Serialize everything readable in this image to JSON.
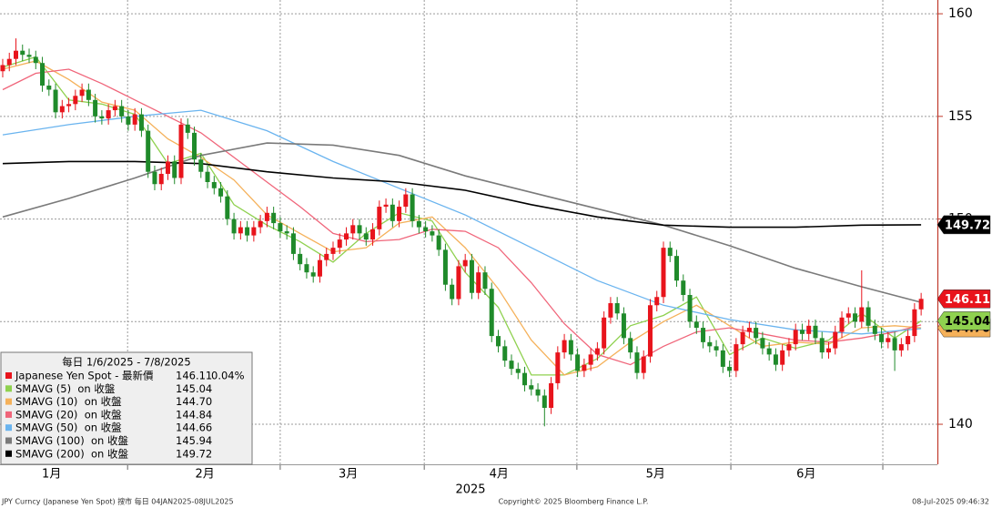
{
  "chart_data": {
    "type": "candlestick",
    "xlim": [
      -0.41,
      141.46
    ],
    "ylim": [
      138.05,
      160.67
    ],
    "yticks": [
      140,
      145,
      150,
      155,
      160
    ],
    "xticks": [
      {
        "value": 7.4,
        "label": "1月"
      },
      {
        "value": 30.6,
        "label": "2月"
      },
      {
        "value": 52.3,
        "label": "3月"
      },
      {
        "value": 75.1,
        "label": "4月"
      },
      {
        "value": 98.8,
        "label": "5月"
      },
      {
        "value": 121.6,
        "label": "6月"
      }
    ],
    "xgrid": [
      18.9,
      42.0,
      63.8,
      86.9,
      110.2,
      133.2
    ],
    "xlabel": "2025",
    "grid": true,
    "up_color": "#e8141c",
    "down_color": "#1f8a2a",
    "price": {
      "name": "Japanese Yen Spot - 最新價",
      "color": "#e8141c",
      "change": "0.04%",
      "tag_text_color": "#ffffff"
    },
    "ohlc": [
      [
        157.2,
        157.8,
        156.9,
        157.5
      ],
      [
        157.5,
        158.1,
        157.2,
        157.8
      ],
      [
        157.8,
        158.8,
        157.5,
        158.2
      ],
      [
        158.2,
        158.5,
        157.7,
        158.0
      ],
      [
        158.0,
        158.3,
        157.6,
        157.9
      ],
      [
        157.9,
        158.2,
        157.3,
        157.6
      ],
      [
        157.6,
        157.9,
        156.2,
        156.5
      ],
      [
        156.5,
        156.8,
        156.0,
        156.3
      ],
      [
        156.3,
        156.6,
        154.9,
        155.2
      ],
      [
        155.2,
        155.8,
        154.9,
        155.5
      ],
      [
        155.5,
        155.9,
        155.2,
        155.6
      ],
      [
        155.6,
        156.3,
        155.3,
        156.0
      ],
      [
        156.0,
        156.6,
        155.7,
        156.3
      ],
      [
        156.3,
        156.6,
        155.5,
        155.8
      ],
      [
        155.8,
        156.1,
        154.7,
        155.0
      ],
      [
        155.0,
        155.3,
        154.6,
        154.9
      ],
      [
        154.9,
        155.6,
        154.6,
        155.3
      ],
      [
        155.3,
        155.8,
        155.0,
        155.5
      ],
      [
        155.5,
        155.8,
        154.7,
        155.0
      ],
      [
        155.0,
        155.3,
        154.3,
        154.6
      ],
      [
        154.6,
        155.4,
        154.3,
        155.1
      ],
      [
        155.1,
        155.4,
        154.0,
        154.3
      ],
      [
        154.3,
        154.6,
        152.0,
        152.3
      ],
      [
        152.3,
        152.6,
        151.4,
        151.7
      ],
      [
        151.7,
        152.5,
        151.4,
        152.2
      ],
      [
        152.2,
        153.1,
        151.9,
        152.8
      ],
      [
        152.8,
        153.1,
        151.7,
        152.0
      ],
      [
        152.0,
        154.9,
        151.7,
        154.6
      ],
      [
        154.6,
        154.9,
        153.9,
        154.2
      ],
      [
        154.2,
        154.5,
        152.6,
        152.9
      ],
      [
        152.9,
        153.2,
        152.0,
        152.3
      ],
      [
        152.3,
        152.6,
        151.5,
        151.8
      ],
      [
        151.8,
        152.1,
        151.2,
        151.5
      ],
      [
        151.5,
        151.8,
        150.8,
        151.1
      ],
      [
        151.1,
        151.4,
        149.7,
        150.0
      ],
      [
        150.0,
        150.3,
        149.0,
        149.3
      ],
      [
        149.3,
        149.9,
        149.0,
        149.6
      ],
      [
        149.6,
        149.9,
        148.9,
        149.2
      ],
      [
        149.2,
        149.9,
        148.9,
        149.6
      ],
      [
        149.6,
        150.2,
        149.3,
        149.9
      ],
      [
        149.9,
        150.6,
        149.6,
        150.3
      ],
      [
        150.3,
        150.6,
        149.5,
        149.8
      ],
      [
        149.8,
        150.1,
        149.1,
        149.4
      ],
      [
        149.4,
        149.7,
        149.0,
        149.3
      ],
      [
        149.3,
        149.6,
        148.0,
        148.3
      ],
      [
        148.3,
        148.6,
        147.5,
        147.8
      ],
      [
        147.8,
        148.1,
        147.1,
        147.4
      ],
      [
        147.4,
        147.7,
        146.9,
        147.2
      ],
      [
        147.2,
        148.3,
        146.9,
        148.0
      ],
      [
        148.0,
        148.6,
        147.7,
        148.3
      ],
      [
        148.3,
        148.9,
        148.0,
        148.6
      ],
      [
        148.6,
        149.3,
        148.3,
        149.0
      ],
      [
        149.0,
        149.6,
        148.7,
        149.3
      ],
      [
        149.3,
        150.0,
        149.0,
        149.7
      ],
      [
        149.7,
        150.0,
        149.0,
        149.3
      ],
      [
        149.3,
        149.6,
        148.7,
        149.0
      ],
      [
        149.0,
        149.8,
        148.7,
        149.5
      ],
      [
        149.5,
        150.9,
        149.2,
        150.6
      ],
      [
        150.6,
        151.0,
        150.3,
        150.7
      ],
      [
        150.7,
        151.0,
        149.6,
        149.9
      ],
      [
        149.9,
        150.9,
        149.6,
        150.6
      ],
      [
        150.6,
        151.5,
        150.3,
        151.2
      ],
      [
        151.2,
        151.5,
        149.6,
        149.9
      ],
      [
        149.9,
        150.2,
        149.3,
        149.6
      ],
      [
        149.6,
        149.9,
        149.1,
        149.4
      ],
      [
        149.4,
        149.7,
        148.9,
        149.2
      ],
      [
        149.2,
        149.5,
        148.2,
        148.5
      ],
      [
        148.5,
        148.8,
        146.5,
        146.8
      ],
      [
        146.8,
        147.1,
        145.8,
        146.1
      ],
      [
        146.1,
        148.0,
        145.8,
        147.7
      ],
      [
        147.7,
        148.3,
        147.4,
        148.0
      ],
      [
        148.0,
        148.3,
        146.1,
        146.4
      ],
      [
        146.4,
        147.7,
        146.1,
        147.4
      ],
      [
        147.4,
        147.7,
        146.3,
        146.6
      ],
      [
        146.6,
        146.9,
        144.0,
        144.3
      ],
      [
        144.3,
        144.6,
        143.5,
        143.8
      ],
      [
        143.8,
        144.1,
        142.8,
        143.1
      ],
      [
        143.1,
        143.4,
        142.4,
        142.7
      ],
      [
        142.7,
        143.0,
        142.2,
        142.5
      ],
      [
        142.5,
        142.8,
        141.6,
        141.9
      ],
      [
        141.9,
        142.2,
        141.4,
        141.7
      ],
      [
        141.7,
        142.0,
        141.1,
        141.4
      ],
      [
        141.4,
        141.7,
        139.9,
        140.8
      ],
      [
        140.8,
        142.3,
        140.5,
        142.0
      ],
      [
        142.0,
        143.8,
        141.7,
        143.5
      ],
      [
        143.5,
        144.4,
        143.2,
        144.1
      ],
      [
        144.1,
        144.4,
        143.1,
        143.4
      ],
      [
        143.4,
        143.7,
        142.3,
        142.6
      ],
      [
        142.6,
        143.2,
        142.3,
        142.9
      ],
      [
        142.9,
        143.7,
        142.6,
        143.4
      ],
      [
        143.4,
        144.0,
        143.1,
        143.7
      ],
      [
        143.7,
        145.5,
        143.4,
        145.2
      ],
      [
        145.2,
        146.2,
        144.9,
        145.9
      ],
      [
        145.9,
        146.2,
        145.1,
        145.4
      ],
      [
        145.4,
        145.7,
        143.9,
        144.2
      ],
      [
        144.2,
        144.5,
        143.2,
        143.5
      ],
      [
        143.5,
        143.8,
        142.2,
        142.5
      ],
      [
        142.5,
        143.6,
        142.2,
        143.3
      ],
      [
        143.3,
        146.1,
        143.0,
        145.8
      ],
      [
        145.8,
        146.5,
        145.5,
        146.2
      ],
      [
        146.2,
        148.9,
        145.9,
        148.6
      ],
      [
        148.6,
        148.9,
        147.9,
        148.2
      ],
      [
        148.2,
        148.5,
        146.7,
        147.0
      ],
      [
        147.0,
        147.3,
        146.0,
        146.3
      ],
      [
        146.3,
        146.6,
        144.7,
        145.0
      ],
      [
        145.0,
        145.3,
        144.4,
        144.7
      ],
      [
        144.7,
        145.0,
        143.7,
        144.0
      ],
      [
        144.0,
        144.3,
        143.5,
        143.8
      ],
      [
        143.8,
        144.1,
        143.3,
        143.6
      ],
      [
        143.6,
        143.9,
        142.5,
        142.8
      ],
      [
        142.8,
        143.1,
        142.3,
        142.6
      ],
      [
        142.6,
        144.2,
        142.3,
        143.9
      ],
      [
        143.9,
        144.8,
        143.6,
        144.5
      ],
      [
        144.5,
        145.0,
        144.2,
        144.7
      ],
      [
        144.7,
        145.0,
        143.9,
        144.2
      ],
      [
        144.2,
        144.5,
        143.4,
        143.7
      ],
      [
        143.7,
        144.0,
        143.1,
        143.4
      ],
      [
        143.4,
        143.7,
        142.6,
        142.9
      ],
      [
        142.9,
        143.9,
        142.6,
        143.6
      ],
      [
        143.6,
        144.2,
        143.3,
        143.9
      ],
      [
        143.9,
        144.9,
        143.6,
        144.6
      ],
      [
        144.6,
        144.9,
        144.1,
        144.4
      ],
      [
        144.4,
        145.1,
        144.1,
        144.8
      ],
      [
        144.8,
        145.1,
        143.9,
        144.2
      ],
      [
        144.2,
        144.5,
        143.2,
        143.5
      ],
      [
        143.5,
        144.0,
        143.2,
        143.7
      ],
      [
        143.7,
        144.8,
        143.4,
        144.5
      ],
      [
        144.5,
        145.5,
        144.2,
        145.2
      ],
      [
        145.2,
        145.7,
        144.9,
        145.4
      ],
      [
        145.4,
        145.7,
        144.7,
        145.0
      ],
      [
        145.0,
        147.5,
        144.7,
        145.7
      ],
      [
        145.7,
        146.0,
        144.5,
        144.8
      ],
      [
        144.8,
        145.1,
        144.1,
        144.4
      ],
      [
        144.4,
        144.7,
        143.7,
        144.0
      ],
      [
        144.0,
        144.5,
        143.7,
        144.2
      ],
      [
        144.2,
        144.5,
        142.6,
        143.6
      ],
      [
        143.6,
        144.2,
        143.3,
        143.9
      ],
      [
        143.9,
        144.6,
        143.6,
        144.3
      ],
      [
        144.3,
        145.9,
        144.0,
        145.6
      ],
      [
        145.6,
        146.4,
        145.3,
        146.11
      ]
    ],
    "series": [
      {
        "name": "SMAVG (5)  on 收盤",
        "color": "#8fd14f",
        "last_label": "145.04",
        "x": [
          0,
          5,
          10,
          15,
          20,
          25,
          30,
          35,
          40,
          45,
          50,
          55,
          60,
          65,
          70,
          75,
          80,
          85,
          90,
          95,
          100,
          105,
          110,
          115,
          120,
          125,
          130,
          135,
          139
        ],
        "values": [
          157.4,
          157.9,
          155.8,
          155.6,
          155.1,
          152.7,
          153.2,
          150.7,
          149.7,
          148.9,
          147.9,
          149.3,
          150.3,
          149.9,
          147.4,
          145.7,
          142.4,
          142.4,
          143.2,
          144.8,
          145.3,
          146.2,
          143.4,
          144.2,
          143.7,
          144.1,
          145.4,
          144.2,
          145.04
        ]
      },
      {
        "name": "SMAVG (10)  on 收盤",
        "color": "#f5b15a",
        "last_label": "144.70",
        "x": [
          0,
          5,
          10,
          15,
          20,
          25,
          30,
          35,
          40,
          45,
          50,
          55,
          60,
          65,
          70,
          75,
          80,
          85,
          90,
          95,
          100,
          105,
          110,
          115,
          120,
          125,
          130,
          135,
          139
        ],
        "values": [
          157.3,
          157.7,
          156.8,
          155.7,
          155.3,
          153.9,
          153.0,
          151.9,
          150.2,
          149.3,
          148.4,
          148.6,
          149.8,
          150.1,
          148.6,
          146.6,
          144.1,
          142.4,
          142.8,
          144.0,
          145.0,
          145.8,
          144.8,
          143.8,
          144.0,
          143.9,
          144.7,
          144.8,
          144.7
        ]
      },
      {
        "name": "SMAVG (20)  on 收盤",
        "color": "#f0657a",
        "last_label": "144.84",
        "x": [
          0,
          5,
          10,
          15,
          20,
          25,
          30,
          35,
          40,
          45,
          50,
          55,
          60,
          65,
          70,
          75,
          80,
          85,
          90,
          95,
          100,
          105,
          110,
          115,
          120,
          125,
          130,
          135,
          139
        ],
        "values": [
          156.3,
          157.1,
          157.3,
          156.6,
          155.8,
          155.0,
          154.2,
          153.0,
          151.8,
          150.6,
          149.3,
          148.9,
          149.0,
          149.5,
          149.4,
          148.6,
          146.9,
          144.9,
          143.4,
          142.9,
          143.8,
          144.5,
          144.7,
          144.4,
          144.1,
          144.0,
          144.2,
          144.5,
          144.84
        ]
      },
      {
        "name": "SMAVG (50)  on 收盤",
        "color": "#6ab4ef",
        "last_label": "144.66",
        "x": [
          0,
          10,
          20,
          30,
          40,
          50,
          60,
          70,
          80,
          90,
          100,
          110,
          120,
          130,
          139
        ],
        "values": [
          154.1,
          154.6,
          155.0,
          155.3,
          154.3,
          152.8,
          151.5,
          150.2,
          148.6,
          147.0,
          145.8,
          145.1,
          144.6,
          144.4,
          144.66
        ]
      },
      {
        "name": "SMAVG (100)  on 收盤",
        "color": "#7a7a7a",
        "last_label": "145.94",
        "x": [
          0,
          10,
          20,
          30,
          40,
          50,
          60,
          70,
          80,
          90,
          100,
          110,
          120,
          130,
          139
        ],
        "values": [
          150.1,
          151.0,
          152.0,
          153.1,
          153.7,
          153.6,
          153.1,
          152.1,
          151.3,
          150.5,
          149.7,
          148.7,
          147.6,
          146.7,
          145.94
        ]
      },
      {
        "name": "SMAVG (200)  on 收盤",
        "color": "#000000",
        "last_label": "149.72",
        "x": [
          0,
          10,
          20,
          30,
          40,
          50,
          60,
          70,
          80,
          90,
          100,
          110,
          120,
          130,
          139
        ],
        "values": [
          152.7,
          152.8,
          152.8,
          152.7,
          152.3,
          152.0,
          151.8,
          151.4,
          150.7,
          150.1,
          149.7,
          149.6,
          149.6,
          149.7,
          149.72
        ]
      }
    ],
    "tags": [
      5,
      0,
      1
    ],
    "legend": {
      "title": "每日 1/6/2025 - 7/8/2025",
      "position": "lower left"
    },
    "footer": {
      "left": "JPY Curncy (Japanese Yen Spot) 搜市  每日 04JAN2025-08JUL2025",
      "center": "Copyright© 2025 Bloomberg Finance L.P.",
      "right": "08-Jul-2025 09:46:32"
    }
  }
}
